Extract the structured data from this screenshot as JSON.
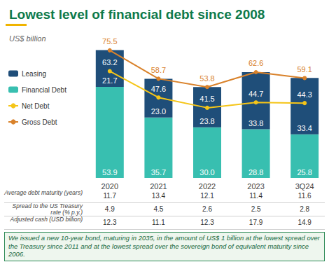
{
  "chart_data": {
    "type": "bar",
    "title": "Lowest level of financial debt since 2008",
    "subtitle": "US$ billion",
    "categories": [
      "2020",
      "2021",
      "2022",
      "2023",
      "3Q24"
    ],
    "series": [
      {
        "name": "Leasing",
        "type": "bar",
        "color": "#1f4e79",
        "values": [
          21.7,
          23.0,
          23.8,
          33.8,
          33.4
        ],
        "value_labels": [
          "21.7",
          "23.0",
          "23.8",
          "33.8",
          "33.4"
        ]
      },
      {
        "name": "Financial Debt",
        "type": "bar",
        "color": "#38bfb0",
        "values": [
          53.9,
          35.7,
          30.0,
          28.8,
          25.8
        ],
        "value_labels": [
          "53.9",
          "35.7",
          "30.0",
          "28.8",
          "25.8"
        ]
      },
      {
        "name": "Net Debt",
        "type": "line",
        "color": "#f5c518",
        "marker": "circle",
        "values": [
          63.2,
          47.6,
          41.5,
          44.7,
          44.3
        ]
      },
      {
        "name": "Gross Debt",
        "type": "line",
        "color": "#d9822b",
        "marker": "circle",
        "values": [
          75.5,
          58.7,
          53.8,
          62.6,
          59.1
        ]
      }
    ],
    "stacked": true,
    "data_labels": true,
    "legend": "left",
    "tick_labels": "x",
    "ylim": [
      0,
      80
    ]
  },
  "table": {
    "rows": [
      {
        "label": "Average debt maturity (years)",
        "values": [
          11.7,
          13.4,
          12.1,
          11.4,
          11.6
        ]
      },
      {
        "label": "Spread to the US Treasury rate (% p.y.)",
        "values": [
          4.9,
          4.5,
          2.6,
          2.5,
          2.8
        ]
      },
      {
        "label": "Adjusted cash (USD billion)",
        "values": [
          12.3,
          11.1,
          12.3,
          17.9,
          14.9
        ]
      }
    ]
  },
  "note": "We issued a new 10-year bond, maturing in 2035, in the amount of US$ 1 billion at the lowest spread over the Treasury since 2011 and at the lowest spread over the sovereign bond of equivalent maturity since 2006."
}
